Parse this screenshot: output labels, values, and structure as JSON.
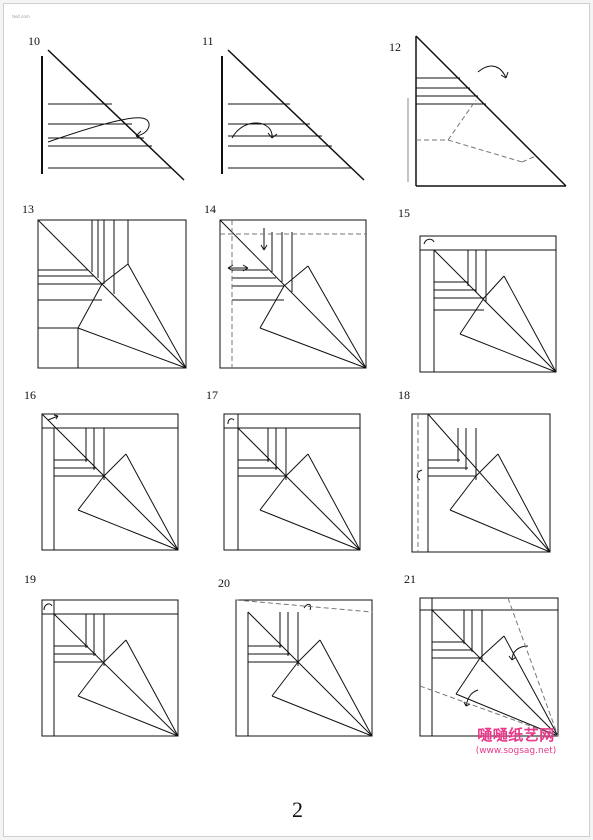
{
  "header": {
    "tiny_text": "text.com"
  },
  "steps": [
    "10",
    "11",
    "12",
    "13",
    "14",
    "15",
    "16",
    "17",
    "18",
    "19",
    "20",
    "21"
  ],
  "watermark": {
    "logo": "嗵嗵纸艺网",
    "url": "(www.sogsag.net)"
  },
  "page_number": "2"
}
